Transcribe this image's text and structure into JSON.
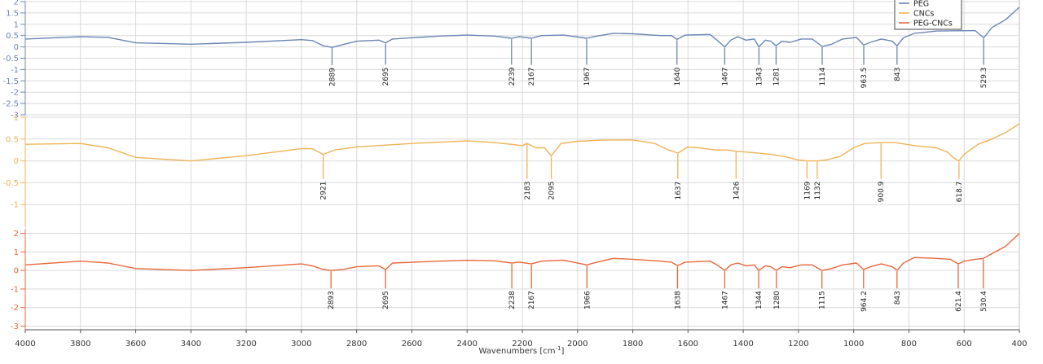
{
  "chart_data": {
    "type": "line",
    "xlabel": "Wavenumbers [cm",
    "xlabel_sup": "-1",
    "xlabel_suffix": "]",
    "xlim": [
      4000,
      400
    ],
    "x_ticks": [
      4000,
      3800,
      3600,
      3400,
      3200,
      3000,
      2800,
      2600,
      2400,
      2200,
      2000,
      1800,
      1600,
      1400,
      1200,
      1000,
      800,
      600,
      400
    ],
    "x_tick_labels": [
      "4000",
      "3800",
      "3600",
      "3400",
      "3200",
      "3000",
      "2800",
      "2600",
      "2400",
      "2200",
      "2000",
      "1800",
      "1600",
      "1400",
      "1200",
      "1000",
      "800",
      "600",
      "400"
    ],
    "grid": true,
    "legend_placement": "top-right",
    "legend": [
      "PEG",
      "CNCs",
      "PEG-CNCs"
    ],
    "series": [
      {
        "name": "PEG",
        "color": "#6b86b5",
        "ylim": [
          -3,
          2
        ],
        "y_ticks": [
          2,
          1.5,
          1,
          0.5,
          0,
          -0.5,
          -1,
          -1.5,
          -2,
          -2.5,
          -3
        ],
        "y_tick_labels": [
          "2",
          "1.5",
          "1",
          "0.5",
          "0",
          "-0.5",
          "-1",
          "-1.5",
          "-2",
          "-2.5",
          "-3"
        ],
        "points": [
          [
            4000,
            0.35
          ],
          [
            3800,
            0.45
          ],
          [
            3700,
            0.42
          ],
          [
            3600,
            0.18
          ],
          [
            3400,
            0.12
          ],
          [
            3200,
            0.2
          ],
          [
            3000,
            0.32
          ],
          [
            2960,
            0.28
          ],
          [
            2920,
            0.05
          ],
          [
            2889,
            -0.02
          ],
          [
            2850,
            0.1
          ],
          [
            2800,
            0.25
          ],
          [
            2720,
            0.3
          ],
          [
            2695,
            0.18
          ],
          [
            2670,
            0.35
          ],
          [
            2500,
            0.48
          ],
          [
            2400,
            0.52
          ],
          [
            2300,
            0.48
          ],
          [
            2239,
            0.38
          ],
          [
            2210,
            0.45
          ],
          [
            2167,
            0.38
          ],
          [
            2130,
            0.5
          ],
          [
            2050,
            0.52
          ],
          [
            1967,
            0.38
          ],
          [
            1930,
            0.48
          ],
          [
            1870,
            0.6
          ],
          [
            1800,
            0.58
          ],
          [
            1700,
            0.5
          ],
          [
            1660,
            0.5
          ],
          [
            1640,
            0.33
          ],
          [
            1610,
            0.52
          ],
          [
            1520,
            0.55
          ],
          [
            1495,
            0.3
          ],
          [
            1467,
            0.0
          ],
          [
            1445,
            0.3
          ],
          [
            1420,
            0.45
          ],
          [
            1390,
            0.3
          ],
          [
            1360,
            0.35
          ],
          [
            1343,
            0.0
          ],
          [
            1320,
            0.3
          ],
          [
            1300,
            0.25
          ],
          [
            1281,
            0.05
          ],
          [
            1260,
            0.25
          ],
          [
            1230,
            0.2
          ],
          [
            1190,
            0.35
          ],
          [
            1150,
            0.35
          ],
          [
            1114,
            0.02
          ],
          [
            1080,
            0.12
          ],
          [
            1040,
            0.35
          ],
          [
            990,
            0.42
          ],
          [
            963.5,
            0.08
          ],
          [
            940,
            0.2
          ],
          [
            900,
            0.35
          ],
          [
            860,
            0.25
          ],
          [
            843,
            0.05
          ],
          [
            820,
            0.4
          ],
          [
            780,
            0.6
          ],
          [
            700,
            0.7
          ],
          [
            560,
            0.72
          ],
          [
            529.3,
            0.4
          ],
          [
            500,
            0.85
          ],
          [
            450,
            1.2
          ],
          [
            400,
            1.75
          ]
        ],
        "annotations": [
          {
            "x": 2889,
            "label": "2889"
          },
          {
            "x": 2695,
            "label": "2695"
          },
          {
            "x": 2239,
            "label": "2239"
          },
          {
            "x": 2167,
            "label": "2167"
          },
          {
            "x": 1967,
            "label": "1967"
          },
          {
            "x": 1640,
            "label": "1640"
          },
          {
            "x": 1467,
            "label": "1467"
          },
          {
            "x": 1343,
            "label": "1343"
          },
          {
            "x": 1281,
            "label": "1281"
          },
          {
            "x": 1114,
            "label": "1114"
          },
          {
            "x": 963.5,
            "label": "963.5"
          },
          {
            "x": 843,
            "label": "843"
          },
          {
            "x": 529.3,
            "label": "529.3"
          }
        ]
      },
      {
        "name": "CNCs",
        "color": "#f0b256",
        "ylim": [
          -1.5,
          1
        ],
        "y_ticks": [
          1,
          0.5,
          0,
          -0.5,
          -1
        ],
        "y_tick_labels": [
          "1",
          "0.5",
          "0",
          "-0.5",
          "-1"
        ],
        "points": [
          [
            4000,
            0.38
          ],
          [
            3800,
            0.4
          ],
          [
            3700,
            0.3
          ],
          [
            3600,
            0.08
          ],
          [
            3400,
            0.0
          ],
          [
            3200,
            0.12
          ],
          [
            3000,
            0.28
          ],
          [
            2960,
            0.28
          ],
          [
            2921,
            0.15
          ],
          [
            2880,
            0.25
          ],
          [
            2800,
            0.32
          ],
          [
            2600,
            0.4
          ],
          [
            2400,
            0.46
          ],
          [
            2300,
            0.42
          ],
          [
            2200,
            0.35
          ],
          [
            2183,
            0.4
          ],
          [
            2150,
            0.3
          ],
          [
            2120,
            0.3
          ],
          [
            2095,
            0.12
          ],
          [
            2060,
            0.4
          ],
          [
            2000,
            0.45
          ],
          [
            1900,
            0.48
          ],
          [
            1800,
            0.48
          ],
          [
            1720,
            0.4
          ],
          [
            1670,
            0.25
          ],
          [
            1637,
            0.18
          ],
          [
            1600,
            0.32
          ],
          [
            1560,
            0.3
          ],
          [
            1500,
            0.25
          ],
          [
            1460,
            0.25
          ],
          [
            1426,
            0.22
          ],
          [
            1380,
            0.2
          ],
          [
            1300,
            0.15
          ],
          [
            1250,
            0.1
          ],
          [
            1200,
            0.02
          ],
          [
            1169,
            0.0
          ],
          [
            1150,
            0.0
          ],
          [
            1132,
            0.0
          ],
          [
            1100,
            0.02
          ],
          [
            1050,
            0.1
          ],
          [
            1000,
            0.3
          ],
          [
            960,
            0.4
          ],
          [
            900.9,
            0.42
          ],
          [
            850,
            0.42
          ],
          [
            780,
            0.35
          ],
          [
            700,
            0.3
          ],
          [
            660,
            0.2
          ],
          [
            640,
            0.08
          ],
          [
            618.7,
            0.0
          ],
          [
            600,
            0.15
          ],
          [
            550,
            0.38
          ],
          [
            500,
            0.5
          ],
          [
            450,
            0.65
          ],
          [
            400,
            0.85
          ]
        ],
        "annotations": [
          {
            "x": 2921,
            "label": "2921"
          },
          {
            "x": 2183,
            "label": "2183"
          },
          {
            "x": 2095,
            "label": "2095"
          },
          {
            "x": 1637,
            "label": "1637"
          },
          {
            "x": 1426,
            "label": "1426"
          },
          {
            "x": 1169,
            "label": "1169"
          },
          {
            "x": 1132,
            "label": "1132"
          },
          {
            "x": 900.9,
            "label": "900.9"
          },
          {
            "x": 618.7,
            "label": "618.7"
          }
        ]
      },
      {
        "name": "PEG-CNCs",
        "color": "#e8673a",
        "ylim": [
          -3.2,
          2.2
        ],
        "y_ticks": [
          2,
          1,
          0,
          -1,
          -2,
          -3
        ],
        "y_tick_labels": [
          "2",
          "1",
          "0",
          "-1",
          "-2",
          "-3"
        ],
        "points": [
          [
            4000,
            0.3
          ],
          [
            3800,
            0.5
          ],
          [
            3700,
            0.4
          ],
          [
            3600,
            0.1
          ],
          [
            3400,
            0.0
          ],
          [
            3200,
            0.15
          ],
          [
            3000,
            0.35
          ],
          [
            2960,
            0.25
          ],
          [
            2920,
            0.05
          ],
          [
            2893,
            0.0
          ],
          [
            2850,
            0.05
          ],
          [
            2800,
            0.2
          ],
          [
            2720,
            0.25
          ],
          [
            2695,
            0.05
          ],
          [
            2670,
            0.4
          ],
          [
            2500,
            0.5
          ],
          [
            2400,
            0.55
          ],
          [
            2300,
            0.52
          ],
          [
            2238,
            0.4
          ],
          [
            2210,
            0.45
          ],
          [
            2167,
            0.35
          ],
          [
            2130,
            0.5
          ],
          [
            2050,
            0.55
          ],
          [
            1966,
            0.3
          ],
          [
            1930,
            0.45
          ],
          [
            1870,
            0.65
          ],
          [
            1800,
            0.6
          ],
          [
            1700,
            0.5
          ],
          [
            1660,
            0.45
          ],
          [
            1638,
            0.25
          ],
          [
            1610,
            0.45
          ],
          [
            1520,
            0.5
          ],
          [
            1495,
            0.3
          ],
          [
            1467,
            0.0
          ],
          [
            1445,
            0.3
          ],
          [
            1420,
            0.4
          ],
          [
            1390,
            0.25
          ],
          [
            1360,
            0.3
          ],
          [
            1344,
            0.0
          ],
          [
            1320,
            0.25
          ],
          [
            1300,
            0.2
          ],
          [
            1280,
            0.0
          ],
          [
            1260,
            0.2
          ],
          [
            1230,
            0.15
          ],
          [
            1190,
            0.3
          ],
          [
            1150,
            0.3
          ],
          [
            1115,
            0.0
          ],
          [
            1080,
            0.1
          ],
          [
            1040,
            0.3
          ],
          [
            990,
            0.4
          ],
          [
            964.2,
            0.05
          ],
          [
            940,
            0.2
          ],
          [
            900,
            0.35
          ],
          [
            860,
            0.2
          ],
          [
            843,
            0.0
          ],
          [
            820,
            0.4
          ],
          [
            780,
            0.7
          ],
          [
            700,
            0.65
          ],
          [
            650,
            0.6
          ],
          [
            621.4,
            0.35
          ],
          [
            600,
            0.5
          ],
          [
            560,
            0.6
          ],
          [
            530.4,
            0.65
          ],
          [
            500,
            0.9
          ],
          [
            450,
            1.3
          ],
          [
            400,
            2.0
          ]
        ],
        "annotations": [
          {
            "x": 2893,
            "label": "2893"
          },
          {
            "x": 2695,
            "label": "2695"
          },
          {
            "x": 2238,
            "label": "2238"
          },
          {
            "x": 2167,
            "label": "2167"
          },
          {
            "x": 1966,
            "label": "1966"
          },
          {
            "x": 1638,
            "label": "1638"
          },
          {
            "x": 1467,
            "label": "1467"
          },
          {
            "x": 1344,
            "label": "1344"
          },
          {
            "x": 1280,
            "label": "1280"
          },
          {
            "x": 1115,
            "label": "1115"
          },
          {
            "x": 964.2,
            "label": "964.2"
          },
          {
            "x": 843,
            "label": "843"
          },
          {
            "x": 621.4,
            "label": "621.4"
          },
          {
            "x": 530.4,
            "label": "530.4"
          }
        ]
      }
    ]
  }
}
